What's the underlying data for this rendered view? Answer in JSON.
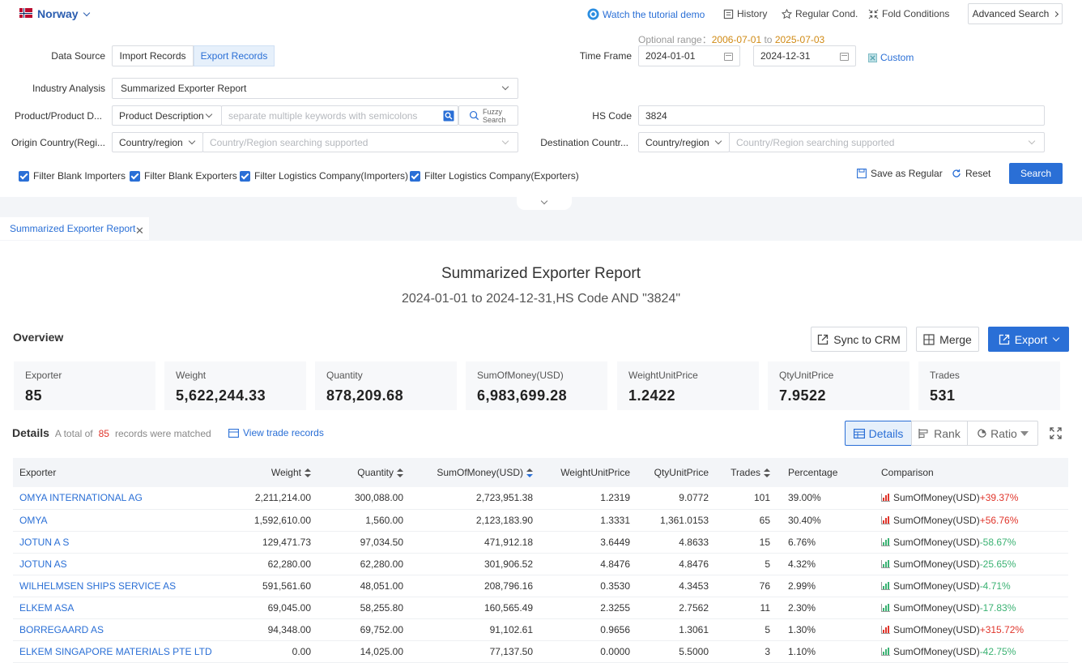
{
  "topbar": {
    "country": "Norway",
    "tutorial": "Watch the tutorial demo",
    "history": "History",
    "regular": "Regular Cond.",
    "fold": "Fold Conditions",
    "advanced": "Advanced Search"
  },
  "form": {
    "optional_range_label": "Optional range：",
    "range_start": "2006-07-01",
    "range_to": "to",
    "range_end": "2025-07-03",
    "data_source_label": "Data Source",
    "import_records": "Import Records",
    "export_records": "Export Records",
    "time_frame_label": "Time Frame",
    "date_from": "2024-01-01",
    "date_to": "2024-12-31",
    "custom": "Custom",
    "industry_label": "Industry Analysis",
    "industry_value": "Summarized Exporter Report",
    "product_label": "Product/Product D...",
    "product_type": "Product Description",
    "product_placeholder": "separate multiple keywords with semicolons",
    "fuzzy1": "Fuzzy",
    "fuzzy2": "Search",
    "hs_label": "HS Code",
    "hs_value": "3824",
    "origin_label": "Origin Country(Regi...",
    "origin_type": "Country/region",
    "origin_placeholder": "Country/Region searching supported",
    "dest_label": "Destination Countr...",
    "dest_type": "Country/region",
    "dest_placeholder": "Country/Region searching supported",
    "filters": [
      "Filter Blank Importers",
      "Filter Blank Exporters",
      "Filter Logistics Company(Importers)",
      "Filter Logistics Company(Exporters)"
    ],
    "save_regular": "Save as Regular",
    "reset": "Reset",
    "search": "Search"
  },
  "tab": {
    "label": "Summarized Exporter Report"
  },
  "report": {
    "title": "Summarized Exporter Report",
    "subtitle": "2024-01-01 to 2024-12-31,HS Code AND \"3824\""
  },
  "overview": {
    "label": "Overview",
    "sync": "Sync to CRM",
    "merge": "Merge",
    "export": "Export",
    "cards": [
      {
        "k": "Exporter",
        "v": "85"
      },
      {
        "k": "Weight",
        "v": "5,622,244.33"
      },
      {
        "k": "Quantity",
        "v": "878,209.68"
      },
      {
        "k": "SumOfMoney(USD)",
        "v": "6,983,699.28"
      },
      {
        "k": "WeightUnitPrice",
        "v": "1.2422"
      },
      {
        "k": "QtyUnitPrice",
        "v": "7.9522"
      },
      {
        "k": "Trades",
        "v": "531"
      }
    ]
  },
  "details": {
    "label": "Details",
    "total_prefix": "A total of",
    "total": "85",
    "total_suffix": "records were matched",
    "view_trade": "View trade records",
    "btn_details": "Details",
    "btn_rank": "Rank",
    "btn_ratio": "Ratio"
  },
  "table": {
    "headers": [
      "Exporter",
      "Weight",
      "Quantity",
      "SumOfMoney(USD)",
      "WeightUnitPrice",
      "QtyUnitPrice",
      "Trades",
      "Percentage",
      "Comparison"
    ],
    "rows": [
      {
        "exporter": "OMYA INTERNATIONAL AG",
        "weight": "2,211,214.00",
        "quantity": "300,088.00",
        "sum": "2,723,951.38",
        "wup": "1.2319",
        "qup": "9.0772",
        "trades": "101",
        "pct": "39.00%",
        "cmp_label": "SumOfMoney(USD)",
        "cmp": "+39.37%",
        "dir": "up"
      },
      {
        "exporter": "OMYA",
        "weight": "1,592,610.00",
        "quantity": "1,560.00",
        "sum": "2,123,183.90",
        "wup": "1.3331",
        "qup": "1,361.0153",
        "trades": "65",
        "pct": "30.40%",
        "cmp_label": "SumOfMoney(USD)",
        "cmp": "+56.76%",
        "dir": "up"
      },
      {
        "exporter": "JOTUN A S",
        "weight": "129,471.73",
        "quantity": "97,034.50",
        "sum": "471,912.18",
        "wup": "3.6449",
        "qup": "4.8633",
        "trades": "15",
        "pct": "6.76%",
        "cmp_label": "SumOfMoney(USD)",
        "cmp": "-58.67%",
        "dir": "dn"
      },
      {
        "exporter": "JOTUN AS",
        "weight": "62,280.00",
        "quantity": "62,280.00",
        "sum": "301,906.52",
        "wup": "4.8476",
        "qup": "4.8476",
        "trades": "5",
        "pct": "4.32%",
        "cmp_label": "SumOfMoney(USD)",
        "cmp": "-25.65%",
        "dir": "dn"
      },
      {
        "exporter": "WILHELMSEN SHIPS SERVICE AS",
        "weight": "591,561.60",
        "quantity": "48,051.00",
        "sum": "208,796.16",
        "wup": "0.3530",
        "qup": "4.3453",
        "trades": "76",
        "pct": "2.99%",
        "cmp_label": "SumOfMoney(USD)",
        "cmp": "-4.71%",
        "dir": "dn"
      },
      {
        "exporter": "ELKEM ASA",
        "weight": "69,045.00",
        "quantity": "58,255.80",
        "sum": "160,565.49",
        "wup": "2.3255",
        "qup": "2.7562",
        "trades": "11",
        "pct": "2.30%",
        "cmp_label": "SumOfMoney(USD)",
        "cmp": "-17.83%",
        "dir": "dn"
      },
      {
        "exporter": "BORREGAARD AS",
        "weight": "94,348.00",
        "quantity": "69,752.00",
        "sum": "91,102.61",
        "wup": "0.9656",
        "qup": "1.3061",
        "trades": "5",
        "pct": "1.30%",
        "cmp_label": "SumOfMoney(USD)",
        "cmp": "+315.72%",
        "dir": "up"
      },
      {
        "exporter": "ELKEM SINGAPORE MATERIALS PTE LTD",
        "weight": "0.00",
        "quantity": "14,025.00",
        "sum": "77,137.50",
        "wup": "0.0000",
        "qup": "5.5000",
        "trades": "3",
        "pct": "1.10%",
        "cmp_label": "SumOfMoney(USD)",
        "cmp": "-42.75%",
        "dir": "dn"
      }
    ]
  }
}
